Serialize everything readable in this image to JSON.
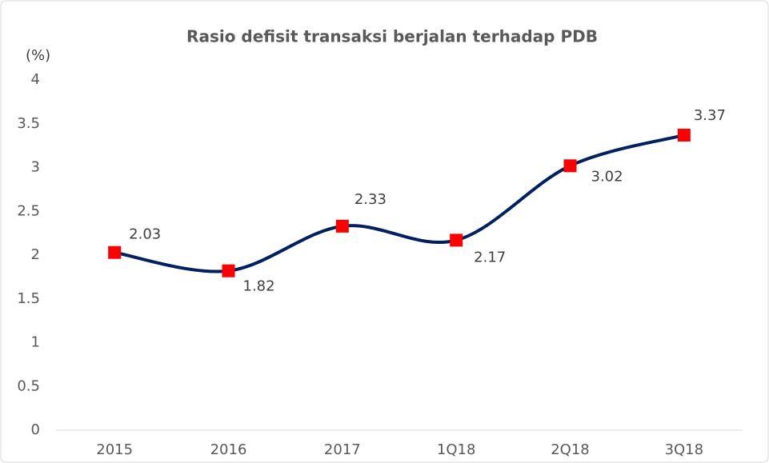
{
  "chart_data": {
    "type": "line",
    "title": "Rasio defisit transaksi berjalan terhadap PDB",
    "y_label": "(%)",
    "categories": [
      "2015",
      "2016",
      "2017",
      "1Q18",
      "2Q18",
      "3Q18"
    ],
    "values": [
      2.03,
      1.82,
      2.33,
      2.17,
      3.02,
      3.37
    ],
    "line_color": "#002060",
    "marker_color": "#ff0000",
    "smooth": true,
    "grid": false,
    "ylim": [
      0,
      4
    ],
    "yticks": [
      0,
      0.5,
      1,
      1.5,
      2,
      2.5,
      3,
      3.5,
      4
    ]
  }
}
